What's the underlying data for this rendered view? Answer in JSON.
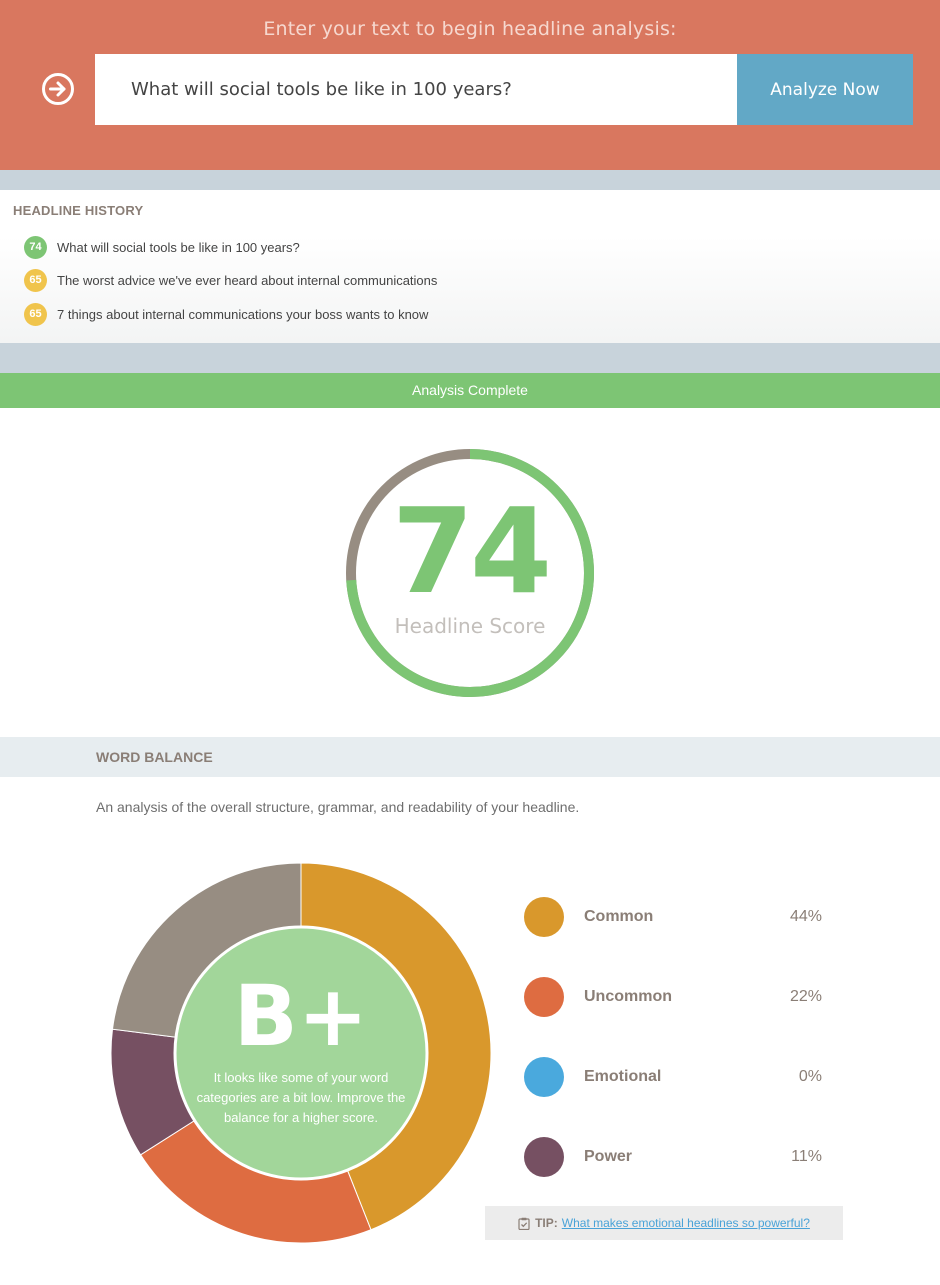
{
  "hero": {
    "prompt": "Enter your text to begin headline analysis:",
    "icon": "arrow-circle-right-icon",
    "input_value": "What will social tools be like in 100 years?",
    "button_label": "Analyze Now"
  },
  "history": {
    "title": "HEADLINE HISTORY",
    "items": [
      {
        "score": "74",
        "text": "What will social tools be like in 100 years?",
        "color": "#7dc574"
      },
      {
        "score": "65",
        "text": "The worst advice we've ever heard about internal communications",
        "color": "#f0c44c"
      },
      {
        "score": "65",
        "text": "7 things about internal communications your boss wants to know",
        "color": "#f0c44c"
      }
    ]
  },
  "analysis": {
    "status": "Analysis Complete",
    "score": "74",
    "score_fraction": 0.74,
    "score_label": "Headline Score",
    "score_color": "#7dc574",
    "track_color": "#978d82"
  },
  "word_balance": {
    "title": "WORD BALANCE",
    "description": "An analysis of the overall structure, grammar, and readability of your headline.",
    "grade": "B+",
    "grade_message": "It looks like some of your word categories are a bit low. Improve the balance for a higher score.",
    "grade_color": "#a2d69a",
    "remainder_color": "#978d82",
    "categories": [
      {
        "label": "Common",
        "percent": "44%",
        "value": 44,
        "color": "#d9982c"
      },
      {
        "label": "Uncommon",
        "percent": "22%",
        "value": 22,
        "color": "#de6c41"
      },
      {
        "label": "Emotional",
        "percent": "0%",
        "value": 0,
        "color": "#4aa9dd"
      },
      {
        "label": "Power",
        "percent": "11%",
        "value": 11,
        "color": "#765062"
      }
    ],
    "tip": {
      "icon": "clipboard-check-icon",
      "label": "TIP:",
      "link_text": "What makes emotional headlines so powerful?"
    }
  }
}
